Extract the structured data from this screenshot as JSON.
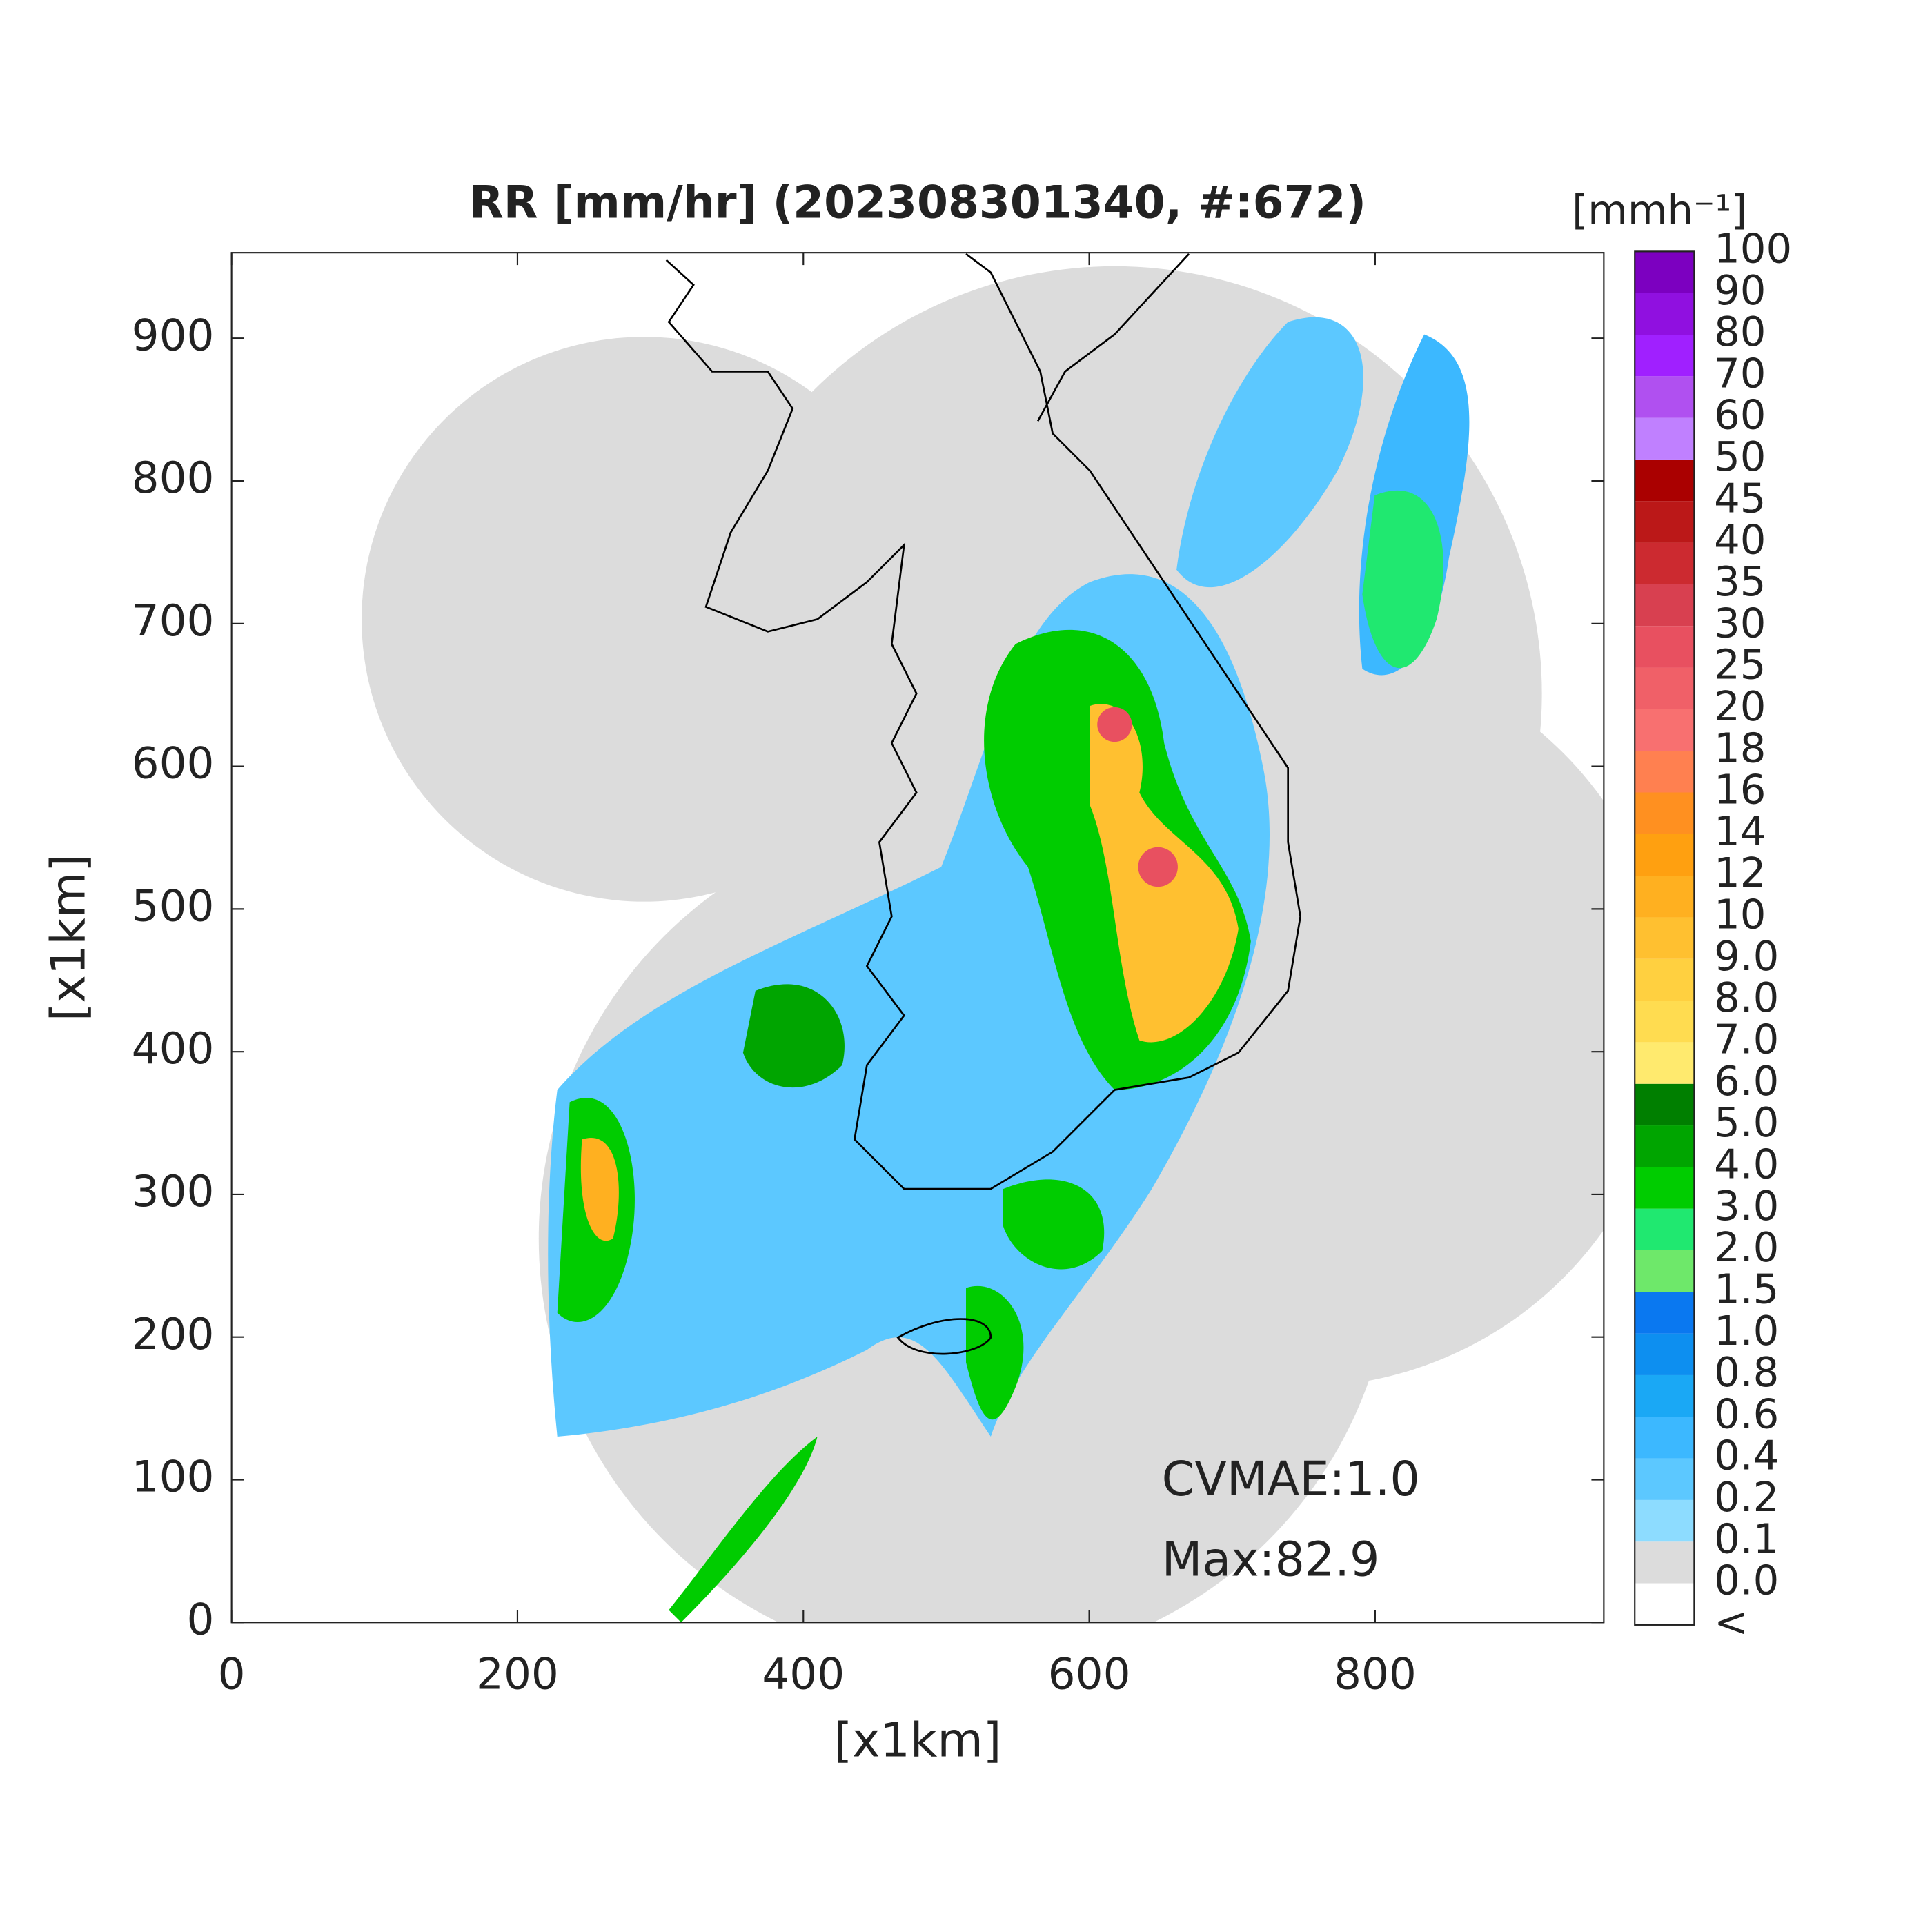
{
  "chart_data": {
    "type": "radar-map",
    "title": "RR [mm/hr] (202308301340, #:672)",
    "x_label": "[x1km]",
    "y_label": "[x1km]",
    "xlim": [
      0,
      960
    ],
    "ylim": [
      0,
      960
    ],
    "xticks": [
      0,
      200,
      400,
      600,
      800
    ],
    "yticks": [
      0,
      100,
      200,
      300,
      400,
      500,
      600,
      700,
      800,
      900
    ],
    "annotations": [
      "CVMAE:1.0",
      "Max:82.9"
    ],
    "colorbar": {
      "title": "[mmh⁻¹]",
      "labels": [
        "<",
        "0.0",
        "0.1",
        "0.2",
        "0.4",
        "0.6",
        "0.8",
        "1.0",
        "1.5",
        "2.0",
        "3.0",
        "4.0",
        "5.0",
        "6.0",
        "7.0",
        "8.0",
        "9.0",
        "10",
        "12",
        "14",
        "16",
        "18",
        "20",
        "25",
        "30",
        "35",
        "40",
        "45",
        "50",
        "60",
        "70",
        "80",
        "90",
        "100"
      ],
      "colors": [
        "#ffffff",
        "#dcdcdc",
        "#8ddcff",
        "#5cc8ff",
        "#3cb8ff",
        "#1aa8f5",
        "#0d8ff0",
        "#0a78f0",
        "#6ee86a",
        "#20e870",
        "#00cc00",
        "#00a500",
        "#007f00",
        "#ffea6e",
        "#ffdc50",
        "#ffd040",
        "#ffc030",
        "#ffb020",
        "#ffa010",
        "#ff9020",
        "#ff8050",
        "#f87070",
        "#f06068",
        "#e85060",
        "#d84050",
        "#cc2a30",
        "#bb1818",
        "#aa0000",
        "#c080ff",
        "#b050f0",
        "#a020ff",
        "#9010e0",
        "#7c00c0",
        "#333333"
      ]
    }
  }
}
